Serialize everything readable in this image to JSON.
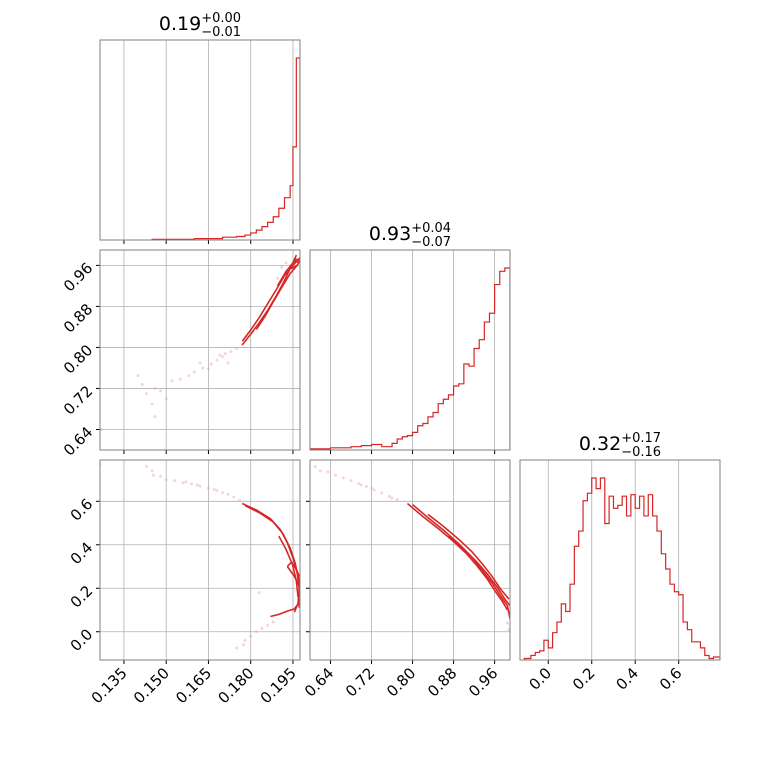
{
  "chart_data": {
    "type": "corner",
    "color": "#d62728",
    "parameters": [
      {
        "title_value": "0.19",
        "title_plus": "+0.00",
        "title_minus": "−0.01",
        "range": [
          0.1265,
          0.1975
        ],
        "ticks": [
          0.135,
          0.15,
          0.165,
          0.18,
          0.195
        ],
        "tick_labels": [
          "0.135",
          "0.150",
          "0.165",
          "0.180",
          "0.195"
        ],
        "hist": {
          "edges": [
            0.145,
            0.15,
            0.155,
            0.16,
            0.165,
            0.17,
            0.175,
            0.178,
            0.18,
            0.182,
            0.184,
            0.186,
            0.188,
            0.19,
            0.192,
            0.194,
            0.195,
            0.1962,
            0.1975
          ],
          "counts": [
            1,
            1,
            1,
            2,
            2,
            4,
            5,
            7,
            10,
            14,
            19,
            25,
            33,
            45,
            60,
            77,
            132,
            258
          ]
        }
      },
      {
        "title_value": "0.93",
        "title_plus": "+0.04",
        "title_minus": "−0.07",
        "range": [
          0.6,
          0.99
        ],
        "ticks": [
          0.64,
          0.72,
          0.8,
          0.88,
          0.96
        ],
        "tick_labels": [
          "0.64",
          "0.72",
          "0.80",
          "0.88",
          "0.96"
        ],
        "hist": {
          "edges": [
            0.6,
            0.64,
            0.68,
            0.7,
            0.72,
            0.74,
            0.76,
            0.77,
            0.78,
            0.79,
            0.8,
            0.81,
            0.82,
            0.83,
            0.84,
            0.85,
            0.86,
            0.87,
            0.88,
            0.89,
            0.9,
            0.91,
            0.92,
            0.93,
            0.94,
            0.95,
            0.96,
            0.97,
            0.98,
            0.99
          ],
          "counts": [
            1,
            2,
            3,
            4,
            5,
            3,
            6,
            10,
            12,
            13,
            16,
            22,
            24,
            30,
            34,
            42,
            46,
            50,
            58,
            60,
            78,
            76,
            92,
            100,
            116,
            124,
            150,
            162,
            165
          ]
        }
      },
      {
        "title_value": "0.32",
        "title_plus": "+0.17",
        "title_minus": "−0.16",
        "range": [
          -0.13,
          0.79
        ],
        "ticks": [
          0.0,
          0.2,
          0.4,
          0.6
        ],
        "tick_labels": [
          "0.0",
          "0.2",
          "0.4",
          "0.6"
        ],
        "hist": {
          "edges": [
            -0.11,
            -0.08,
            -0.06,
            -0.04,
            -0.02,
            0.0,
            0.02,
            0.04,
            0.06,
            0.08,
            0.1,
            0.12,
            0.14,
            0.16,
            0.18,
            0.2,
            0.22,
            0.24,
            0.26,
            0.28,
            0.3,
            0.32,
            0.34,
            0.36,
            0.38,
            0.4,
            0.42,
            0.44,
            0.46,
            0.48,
            0.5,
            0.52,
            0.54,
            0.56,
            0.58,
            0.6,
            0.62,
            0.64,
            0.66,
            0.68,
            0.7,
            0.72,
            0.74,
            0.76,
            0.79
          ],
          "counts": [
            1,
            3,
            5,
            6,
            13,
            8,
            18,
            25,
            37,
            32,
            50,
            75,
            85,
            105,
            110,
            120,
            113,
            120,
            90,
            108,
            100,
            102,
            108,
            95,
            109,
            100,
            108,
            95,
            109,
            95,
            85,
            70,
            60,
            50,
            45,
            43,
            25,
            20,
            12,
            12,
            8,
            3,
            1,
            2
          ]
        }
      }
    ],
    "pairs": [
      {
        "x_param": 0,
        "y_param": 1,
        "contours": [
          [
            [
              0.1962,
              0.98
            ],
            [
              0.195,
              0.965
            ],
            [
              0.1935,
              0.948
            ],
            [
              0.1915,
              0.925
            ],
            [
              0.189,
              0.9
            ],
            [
              0.186,
              0.872
            ],
            [
              0.183,
              0.848
            ],
            [
              0.18,
              0.826
            ],
            [
              0.177,
              0.805
            ]
          ],
          [
            [
              0.177,
              0.812
            ],
            [
              0.18,
              0.834
            ],
            [
              0.183,
              0.858
            ],
            [
              0.186,
              0.885
            ],
            [
              0.189,
              0.912
            ],
            [
              0.192,
              0.94
            ],
            [
              0.195,
              0.96
            ],
            [
              0.1975,
              0.975
            ]
          ],
          [
            [
              0.194,
              0.958
            ],
            [
              0.196,
              0.972
            ],
            [
              0.1975,
              0.97
            ],
            [
              0.1965,
              0.96
            ],
            [
              0.1945,
              0.954
            ],
            [
              0.194,
              0.958
            ]
          ],
          [
            [
              0.1895,
              0.92
            ],
            [
              0.1925,
              0.948
            ],
            [
              0.1955,
              0.968
            ],
            [
              0.1975,
              0.966
            ]
          ],
          [
            [
              0.182,
              0.835
            ],
            [
              0.185,
              0.86
            ],
            [
              0.188,
              0.889
            ],
            [
              0.191,
              0.917
            ],
            [
              0.194,
              0.944
            ],
            [
              0.1968,
              0.962
            ]
          ]
        ],
        "points": [
          [
            0.14,
            0.745
          ],
          [
            0.1415,
            0.728
          ],
          [
            0.143,
            0.71
          ],
          [
            0.146,
            0.72
          ],
          [
            0.15,
            0.7
          ],
          [
            0.152,
            0.735
          ],
          [
            0.155,
            0.738
          ],
          [
            0.158,
            0.745
          ],
          [
            0.16,
            0.752
          ],
          [
            0.163,
            0.76
          ],
          [
            0.166,
            0.768
          ],
          [
            0.168,
            0.775
          ],
          [
            0.17,
            0.782
          ],
          [
            0.171,
            0.788
          ],
          [
            0.173,
            0.792
          ],
          [
            0.175,
            0.798
          ],
          [
            0.177,
            0.805
          ],
          [
            0.172,
            0.77
          ],
          [
            0.169,
            0.785
          ],
          [
            0.165,
            0.758
          ],
          [
            0.162,
            0.77
          ],
          [
            0.148,
            0.715
          ],
          [
            0.145,
            0.69
          ],
          [
            0.146,
            0.665
          ],
          [
            0.127,
            0.64
          ],
          [
            0.1925,
            0.965
          ],
          [
            0.191,
            0.956
          ],
          [
            0.1895,
            0.935
          ]
        ]
      },
      {
        "x_param": 0,
        "y_param": 2,
        "contours": [
          [
            [
              0.177,
              0.59
            ],
            [
              0.182,
              0.56
            ],
            [
              0.187,
              0.52
            ],
            [
              0.1905,
              0.47
            ],
            [
              0.193,
              0.41
            ],
            [
              0.195,
              0.34
            ],
            [
              0.1965,
              0.27
            ],
            [
              0.1972,
              0.2
            ],
            [
              0.1968,
              0.13
            ],
            [
              0.1955,
              0.09
            ]
          ],
          [
            [
              0.178,
              0.58
            ],
            [
              0.183,
              0.548
            ],
            [
              0.188,
              0.505
            ],
            [
              0.1915,
              0.45
            ],
            [
              0.194,
              0.385
            ],
            [
              0.1958,
              0.315
            ],
            [
              0.197,
              0.24
            ],
            [
              0.1975,
              0.17
            ],
            [
              0.1972,
              0.11
            ]
          ],
          [
            [
              0.193,
              0.3
            ],
            [
              0.1955,
              0.255
            ],
            [
              0.197,
              0.215
            ],
            [
              0.1975,
              0.25
            ],
            [
              0.196,
              0.29
            ],
            [
              0.1945,
              0.32
            ],
            [
              0.193,
              0.3
            ]
          ],
          [
            [
              0.19,
              0.44
            ],
            [
              0.1925,
              0.38
            ],
            [
              0.1948,
              0.31
            ],
            [
              0.1962,
              0.235
            ],
            [
              0.1968,
              0.16
            ]
          ],
          [
            [
              0.187,
              0.07
            ],
            [
              0.19,
              0.08
            ],
            [
              0.193,
              0.095
            ],
            [
              0.1955,
              0.105
            ],
            [
              0.197,
              0.13
            ]
          ]
        ],
        "points": [
          [
            0.1265,
            0.77
          ],
          [
            0.143,
            0.76
          ],
          [
            0.145,
            0.74
          ],
          [
            0.1455,
            0.72
          ],
          [
            0.148,
            0.715
          ],
          [
            0.15,
            0.7
          ],
          [
            0.153,
            0.695
          ],
          [
            0.156,
            0.685
          ],
          [
            0.159,
            0.68
          ],
          [
            0.162,
            0.67
          ],
          [
            0.165,
            0.66
          ],
          [
            0.168,
            0.65
          ],
          [
            0.17,
            0.64
          ],
          [
            0.172,
            0.632
          ],
          [
            0.174,
            0.62
          ],
          [
            0.176,
            0.605
          ],
          [
            0.167,
            0.655
          ],
          [
            0.161,
            0.675
          ],
          [
            0.157,
            0.69
          ],
          [
            0.178,
            -0.04
          ],
          [
            0.18,
            -0.02
          ],
          [
            0.182,
            0.0
          ],
          [
            0.184,
            0.015
          ],
          [
            0.186,
            0.03
          ],
          [
            0.188,
            0.045
          ],
          [
            0.1775,
            -0.06
          ],
          [
            0.175,
            -0.075
          ],
          [
            0.183,
            0.18
          ]
        ]
      },
      {
        "x_param": 1,
        "y_param": 2,
        "contours": [
          [
            [
              0.79,
              0.59
            ],
            [
              0.82,
              0.53
            ],
            [
              0.85,
              0.475
            ],
            [
              0.88,
              0.415
            ],
            [
              0.905,
              0.36
            ],
            [
              0.925,
              0.305
            ],
            [
              0.945,
              0.245
            ],
            [
              0.96,
              0.19
            ],
            [
              0.975,
              0.14
            ],
            [
              0.985,
              0.1
            ]
          ],
          [
            [
              0.8,
              0.585
            ],
            [
              0.83,
              0.525
            ],
            [
              0.86,
              0.468
            ],
            [
              0.89,
              0.405
            ],
            [
              0.915,
              0.345
            ],
            [
              0.935,
              0.285
            ],
            [
              0.955,
              0.225
            ],
            [
              0.97,
              0.17
            ],
            [
              0.985,
              0.12
            ],
            [
              0.99,
              0.06
            ]
          ],
          [
            [
              0.83,
              0.54
            ],
            [
              0.86,
              0.485
            ],
            [
              0.89,
              0.425
            ],
            [
              0.915,
              0.37
            ],
            [
              0.935,
              0.315
            ],
            [
              0.955,
              0.255
            ],
            [
              0.972,
              0.195
            ],
            [
              0.988,
              0.15
            ]
          ],
          [
            [
              0.87,
              0.44
            ],
            [
              0.9,
              0.38
            ],
            [
              0.925,
              0.322
            ],
            [
              0.947,
              0.262
            ],
            [
              0.965,
              0.205
            ],
            [
              0.98,
              0.15
            ],
            [
              0.99,
              0.12
            ]
          ]
        ],
        "points": [
          [
            0.61,
            0.76
          ],
          [
            0.62,
            0.74
          ],
          [
            0.635,
            0.735
          ],
          [
            0.65,
            0.72
          ],
          [
            0.665,
            0.708
          ],
          [
            0.68,
            0.695
          ],
          [
            0.695,
            0.682
          ],
          [
            0.71,
            0.668
          ],
          [
            0.725,
            0.652
          ],
          [
            0.74,
            0.638
          ],
          [
            0.755,
            0.622
          ],
          [
            0.77,
            0.608
          ],
          [
            0.7,
            0.675
          ],
          [
            0.72,
            0.66
          ],
          [
            0.76,
            0.615
          ],
          [
            0.985,
            0.04
          ],
          [
            0.988,
            0.01
          ]
        ]
      }
    ]
  }
}
